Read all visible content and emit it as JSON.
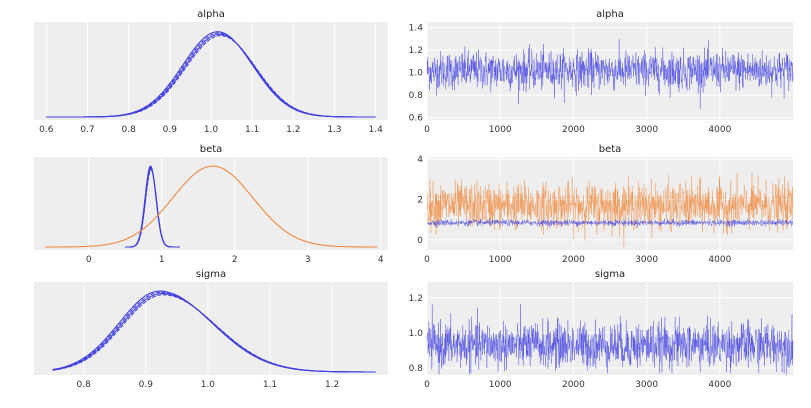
{
  "chart_data": [
    {
      "type": "density",
      "title": "alpha",
      "xlim": [
        0.57,
        1.43
      ],
      "xticks": [
        "0.6",
        "0.7",
        "0.8",
        "0.9",
        "1.0",
        "1.1",
        "1.2",
        "1.3",
        "1.4"
      ],
      "xtick_values": [
        0.6,
        0.7,
        0.8,
        0.9,
        1.0,
        1.1,
        1.2,
        1.3,
        1.4
      ],
      "yticks": [],
      "series": [
        {
          "color": "#4040e0",
          "mean": 1.02,
          "sd": 0.085,
          "range": [
            0.6,
            1.4
          ],
          "chains": 4
        }
      ]
    },
    {
      "type": "trace",
      "title": "alpha",
      "xlim": [
        0,
        4999
      ],
      "ylim": [
        0.58,
        1.45
      ],
      "xticks": [
        "0",
        "1000",
        "2000",
        "3000",
        "4000"
      ],
      "xtick_values": [
        0,
        1000,
        2000,
        3000,
        4000
      ],
      "yticks": [
        "0.6",
        "0.8",
        "1.0",
        "1.2",
        "1.4"
      ],
      "ytick_values": [
        0.6,
        0.8,
        1.0,
        1.2,
        1.4
      ],
      "series": [
        {
          "color": "#4040e0",
          "mean": 1.02,
          "sd": 0.085
        }
      ]
    },
    {
      "type": "density",
      "title": "beta",
      "xlim": [
        -0.75,
        4.1
      ],
      "xticks": [
        "0",
        "1",
        "2",
        "3",
        "4"
      ],
      "xtick_values": [
        0,
        1,
        2,
        3,
        4
      ],
      "yticks": [],
      "series": [
        {
          "color": "#4040e0",
          "mean": 0.85,
          "sd": 0.075,
          "range": [
            0.5,
            1.25
          ],
          "chains": 4
        },
        {
          "color": "#f0883c",
          "mean": 1.7,
          "sd": 0.55,
          "range": [
            -0.6,
            3.95
          ],
          "chains": 1
        }
      ]
    },
    {
      "type": "trace",
      "title": "beta",
      "xlim": [
        0,
        4999
      ],
      "ylim": [
        -0.5,
        4.1
      ],
      "xticks": [
        "0",
        "1000",
        "2000",
        "3000",
        "4000"
      ],
      "xtick_values": [
        0,
        1000,
        2000,
        3000,
        4000
      ],
      "yticks": [
        "0",
        "2",
        "4"
      ],
      "ytick_values": [
        0,
        2,
        4
      ],
      "series": [
        {
          "color": "#f0883c",
          "mean": 1.7,
          "sd": 0.55
        },
        {
          "color": "#4040e0",
          "mean": 0.85,
          "sd": 0.075
        }
      ]
    },
    {
      "type": "density",
      "title": "sigma",
      "xlim": [
        0.72,
        1.29
      ],
      "xticks": [
        "0.8",
        "0.9",
        "1.0",
        "1.1",
        "1.2"
      ],
      "xtick_values": [
        0.8,
        0.9,
        1.0,
        1.1,
        1.2
      ],
      "yticks": [],
      "series": [
        {
          "color": "#4040e0",
          "mean": 0.925,
          "sd": 0.065,
          "range": [
            0.75,
            1.27
          ],
          "chains": 4,
          "skew": 1.3
        }
      ]
    },
    {
      "type": "trace",
      "title": "sigma",
      "xlim": [
        0,
        4999
      ],
      "ylim": [
        0.76,
        1.29
      ],
      "xticks": [
        "0",
        "1000",
        "2000",
        "3000",
        "4000"
      ],
      "xtick_values": [
        0,
        1000,
        2000,
        3000,
        4000
      ],
      "yticks": [
        "0.8",
        "1.0",
        "1.2"
      ],
      "ytick_values": [
        0.8,
        1.0,
        1.2
      ],
      "series": [
        {
          "color": "#4040e0",
          "mean": 0.93,
          "sd": 0.065
        }
      ]
    }
  ],
  "colors": {
    "background": "#eeeeee",
    "grid": "#ffffff",
    "blue": "#4040e0",
    "orange": "#f0883c"
  }
}
